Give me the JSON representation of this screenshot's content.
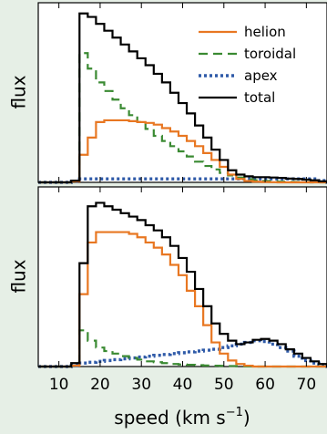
{
  "chart_data": [
    {
      "type": "line",
      "title": "",
      "xlabel": "speed (km s",
      "xlabel_sup": "−1",
      "xlabel_close": ")",
      "ylabel": "flux",
      "xlim": [
        5,
        75
      ],
      "ylim": [
        0,
        1
      ],
      "xticks": [
        10,
        20,
        30,
        40,
        50,
        60,
        70
      ],
      "legend": {
        "placement": "top-right"
      },
      "series": [
        {
          "name": "helion",
          "color": "#e87722",
          "style": "solid",
          "x": [
            5,
            7,
            9,
            11,
            13,
            15,
            17,
            19,
            21,
            23,
            25,
            27,
            29,
            31,
            33,
            35,
            37,
            39,
            41,
            43,
            45,
            47,
            49,
            51,
            53,
            55,
            57,
            59,
            61,
            63,
            65,
            67,
            69,
            71,
            73,
            75
          ],
          "y": [
            0,
            0,
            0,
            0,
            0.005,
            0.16,
            0.26,
            0.35,
            0.36,
            0.36,
            0.36,
            0.355,
            0.35,
            0.345,
            0.335,
            0.315,
            0.295,
            0.27,
            0.24,
            0.21,
            0.17,
            0.13,
            0.09,
            0.045,
            0.02,
            0.008,
            0.004,
            0.002,
            0.001,
            0,
            0,
            0,
            0,
            0,
            0,
            0
          ]
        },
        {
          "name": "toroidal",
          "color": "#3a8a32",
          "style": "dashed",
          "x": [
            5,
            7,
            9,
            11,
            13,
            15,
            17,
            19,
            21,
            23,
            25,
            27,
            29,
            31,
            33,
            35,
            37,
            39,
            41,
            43,
            45,
            47,
            49,
            51,
            53,
            55,
            57,
            59,
            61,
            63,
            65,
            67,
            69,
            71,
            73,
            75
          ],
          "y": [
            0,
            0,
            0,
            0,
            0.005,
            0.75,
            0.66,
            0.58,
            0.53,
            0.48,
            0.43,
            0.39,
            0.35,
            0.31,
            0.27,
            0.24,
            0.21,
            0.18,
            0.15,
            0.12,
            0.095,
            0.075,
            0.055,
            0.04,
            0.028,
            0.018,
            0.012,
            0.008,
            0.006,
            0.004,
            0.003,
            0.002,
            0.001,
            0,
            0,
            0
          ]
        },
        {
          "name": "apex",
          "color": "#2f5aa8",
          "style": "dotted",
          "x": [
            5,
            7,
            9,
            11,
            13,
            15,
            17,
            19,
            21,
            23,
            25,
            27,
            29,
            31,
            33,
            35,
            37,
            39,
            41,
            43,
            45,
            47,
            49,
            51,
            53,
            55,
            57,
            59,
            61,
            63,
            65,
            67,
            69,
            71,
            73,
            75
          ],
          "y": [
            0,
            0,
            0,
            0,
            0.005,
            0.02,
            0.02,
            0.02,
            0.02,
            0.02,
            0.02,
            0.02,
            0.02,
            0.02,
            0.02,
            0.02,
            0.02,
            0.02,
            0.02,
            0.02,
            0.02,
            0.02,
            0.02,
            0.02,
            0.02,
            0.02,
            0.02,
            0.02,
            0.02,
            0.02,
            0.02,
            0.02,
            0.02,
            0.02,
            0.01,
            0
          ]
        },
        {
          "name": "total",
          "color": "#000000",
          "style": "solid",
          "x": [
            5,
            7,
            9,
            11,
            13,
            15,
            17,
            19,
            21,
            23,
            25,
            27,
            29,
            31,
            33,
            35,
            37,
            39,
            41,
            43,
            45,
            47,
            49,
            51,
            53,
            55,
            57,
            59,
            61,
            63,
            65,
            67,
            69,
            71,
            73,
            75
          ],
          "y": [
            0,
            0,
            0,
            0,
            0.01,
            0.98,
            0.96,
            0.92,
            0.88,
            0.84,
            0.8,
            0.76,
            0.72,
            0.68,
            0.63,
            0.58,
            0.52,
            0.46,
            0.4,
            0.33,
            0.26,
            0.19,
            0.13,
            0.07,
            0.045,
            0.035,
            0.03,
            0.03,
            0.028,
            0.026,
            0.022,
            0.02,
            0.016,
            0.012,
            0.006,
            0
          ]
        }
      ]
    },
    {
      "type": "line",
      "title": "",
      "xlabel": "speed (km s",
      "xlabel_sup": "−1",
      "xlabel_close": ")",
      "ylabel": "flux",
      "xlim": [
        5,
        75
      ],
      "ylim": [
        0,
        1
      ],
      "xticks": [
        10,
        20,
        30,
        40,
        50,
        60,
        70
      ],
      "series": [
        {
          "name": "helion",
          "color": "#e87722",
          "style": "solid",
          "x": [
            5,
            7,
            9,
            11,
            13,
            15,
            17,
            19,
            21,
            23,
            25,
            27,
            29,
            31,
            33,
            35,
            37,
            39,
            41,
            43,
            45,
            47,
            49,
            51,
            53,
            55,
            57,
            59,
            61,
            63,
            65,
            67,
            69,
            71,
            73,
            75
          ],
          "y": [
            0,
            0,
            0,
            0,
            0.005,
            0.42,
            0.72,
            0.78,
            0.78,
            0.78,
            0.78,
            0.77,
            0.75,
            0.72,
            0.69,
            0.65,
            0.59,
            0.53,
            0.44,
            0.35,
            0.24,
            0.14,
            0.075,
            0.035,
            0.015,
            0.005,
            0,
            0,
            0,
            0,
            0,
            0,
            0,
            0,
            0,
            0
          ]
        },
        {
          "name": "toroidal",
          "color": "#3a8a32",
          "style": "dashed",
          "x": [
            5,
            7,
            9,
            11,
            13,
            15,
            17,
            19,
            21,
            23,
            25,
            27,
            29,
            31,
            33,
            35,
            37,
            39,
            41,
            43,
            45,
            47,
            49,
            51,
            53,
            55,
            57,
            59,
            61,
            63,
            65,
            67,
            69,
            71,
            73,
            75
          ],
          "y": [
            0,
            0,
            0,
            0,
            0.005,
            0.21,
            0.15,
            0.11,
            0.09,
            0.075,
            0.06,
            0.05,
            0.04,
            0.03,
            0.025,
            0.02,
            0.015,
            0.012,
            0.01,
            0.008,
            0.006,
            0.005,
            0.004,
            0.003,
            0.002,
            0.001,
            0,
            0,
            0,
            0,
            0,
            0,
            0,
            0,
            0,
            0
          ]
        },
        {
          "name": "apex",
          "color": "#2f5aa8",
          "style": "dotted",
          "x": [
            5,
            7,
            9,
            11,
            13,
            15,
            17,
            19,
            21,
            23,
            25,
            27,
            29,
            31,
            33,
            35,
            37,
            39,
            41,
            43,
            45,
            47,
            49,
            51,
            53,
            55,
            57,
            59,
            61,
            63,
            65,
            67,
            69,
            71,
            73,
            75
          ],
          "y": [
            0,
            0,
            0,
            0,
            0.005,
            0.02,
            0.025,
            0.03,
            0.035,
            0.04,
            0.045,
            0.05,
            0.055,
            0.06,
            0.065,
            0.07,
            0.075,
            0.08,
            0.085,
            0.09,
            0.095,
            0.1,
            0.11,
            0.12,
            0.13,
            0.14,
            0.15,
            0.145,
            0.13,
            0.11,
            0.09,
            0.06,
            0.035,
            0.02,
            0.01,
            0
          ]
        },
        {
          "name": "total",
          "color": "#000000",
          "style": "solid",
          "x": [
            5,
            7,
            9,
            11,
            13,
            15,
            17,
            19,
            21,
            23,
            25,
            27,
            29,
            31,
            33,
            35,
            37,
            39,
            41,
            43,
            45,
            47,
            49,
            51,
            53,
            55,
            57,
            59,
            61,
            63,
            65,
            67,
            69,
            71,
            73,
            75
          ],
          "y": [
            0,
            0,
            0,
            0,
            0.02,
            0.6,
            0.93,
            0.95,
            0.93,
            0.91,
            0.89,
            0.87,
            0.85,
            0.82,
            0.79,
            0.75,
            0.7,
            0.63,
            0.55,
            0.45,
            0.35,
            0.25,
            0.19,
            0.15,
            0.13,
            0.14,
            0.155,
            0.16,
            0.15,
            0.13,
            0.1,
            0.075,
            0.05,
            0.03,
            0.015,
            0
          ]
        }
      ]
    }
  ]
}
